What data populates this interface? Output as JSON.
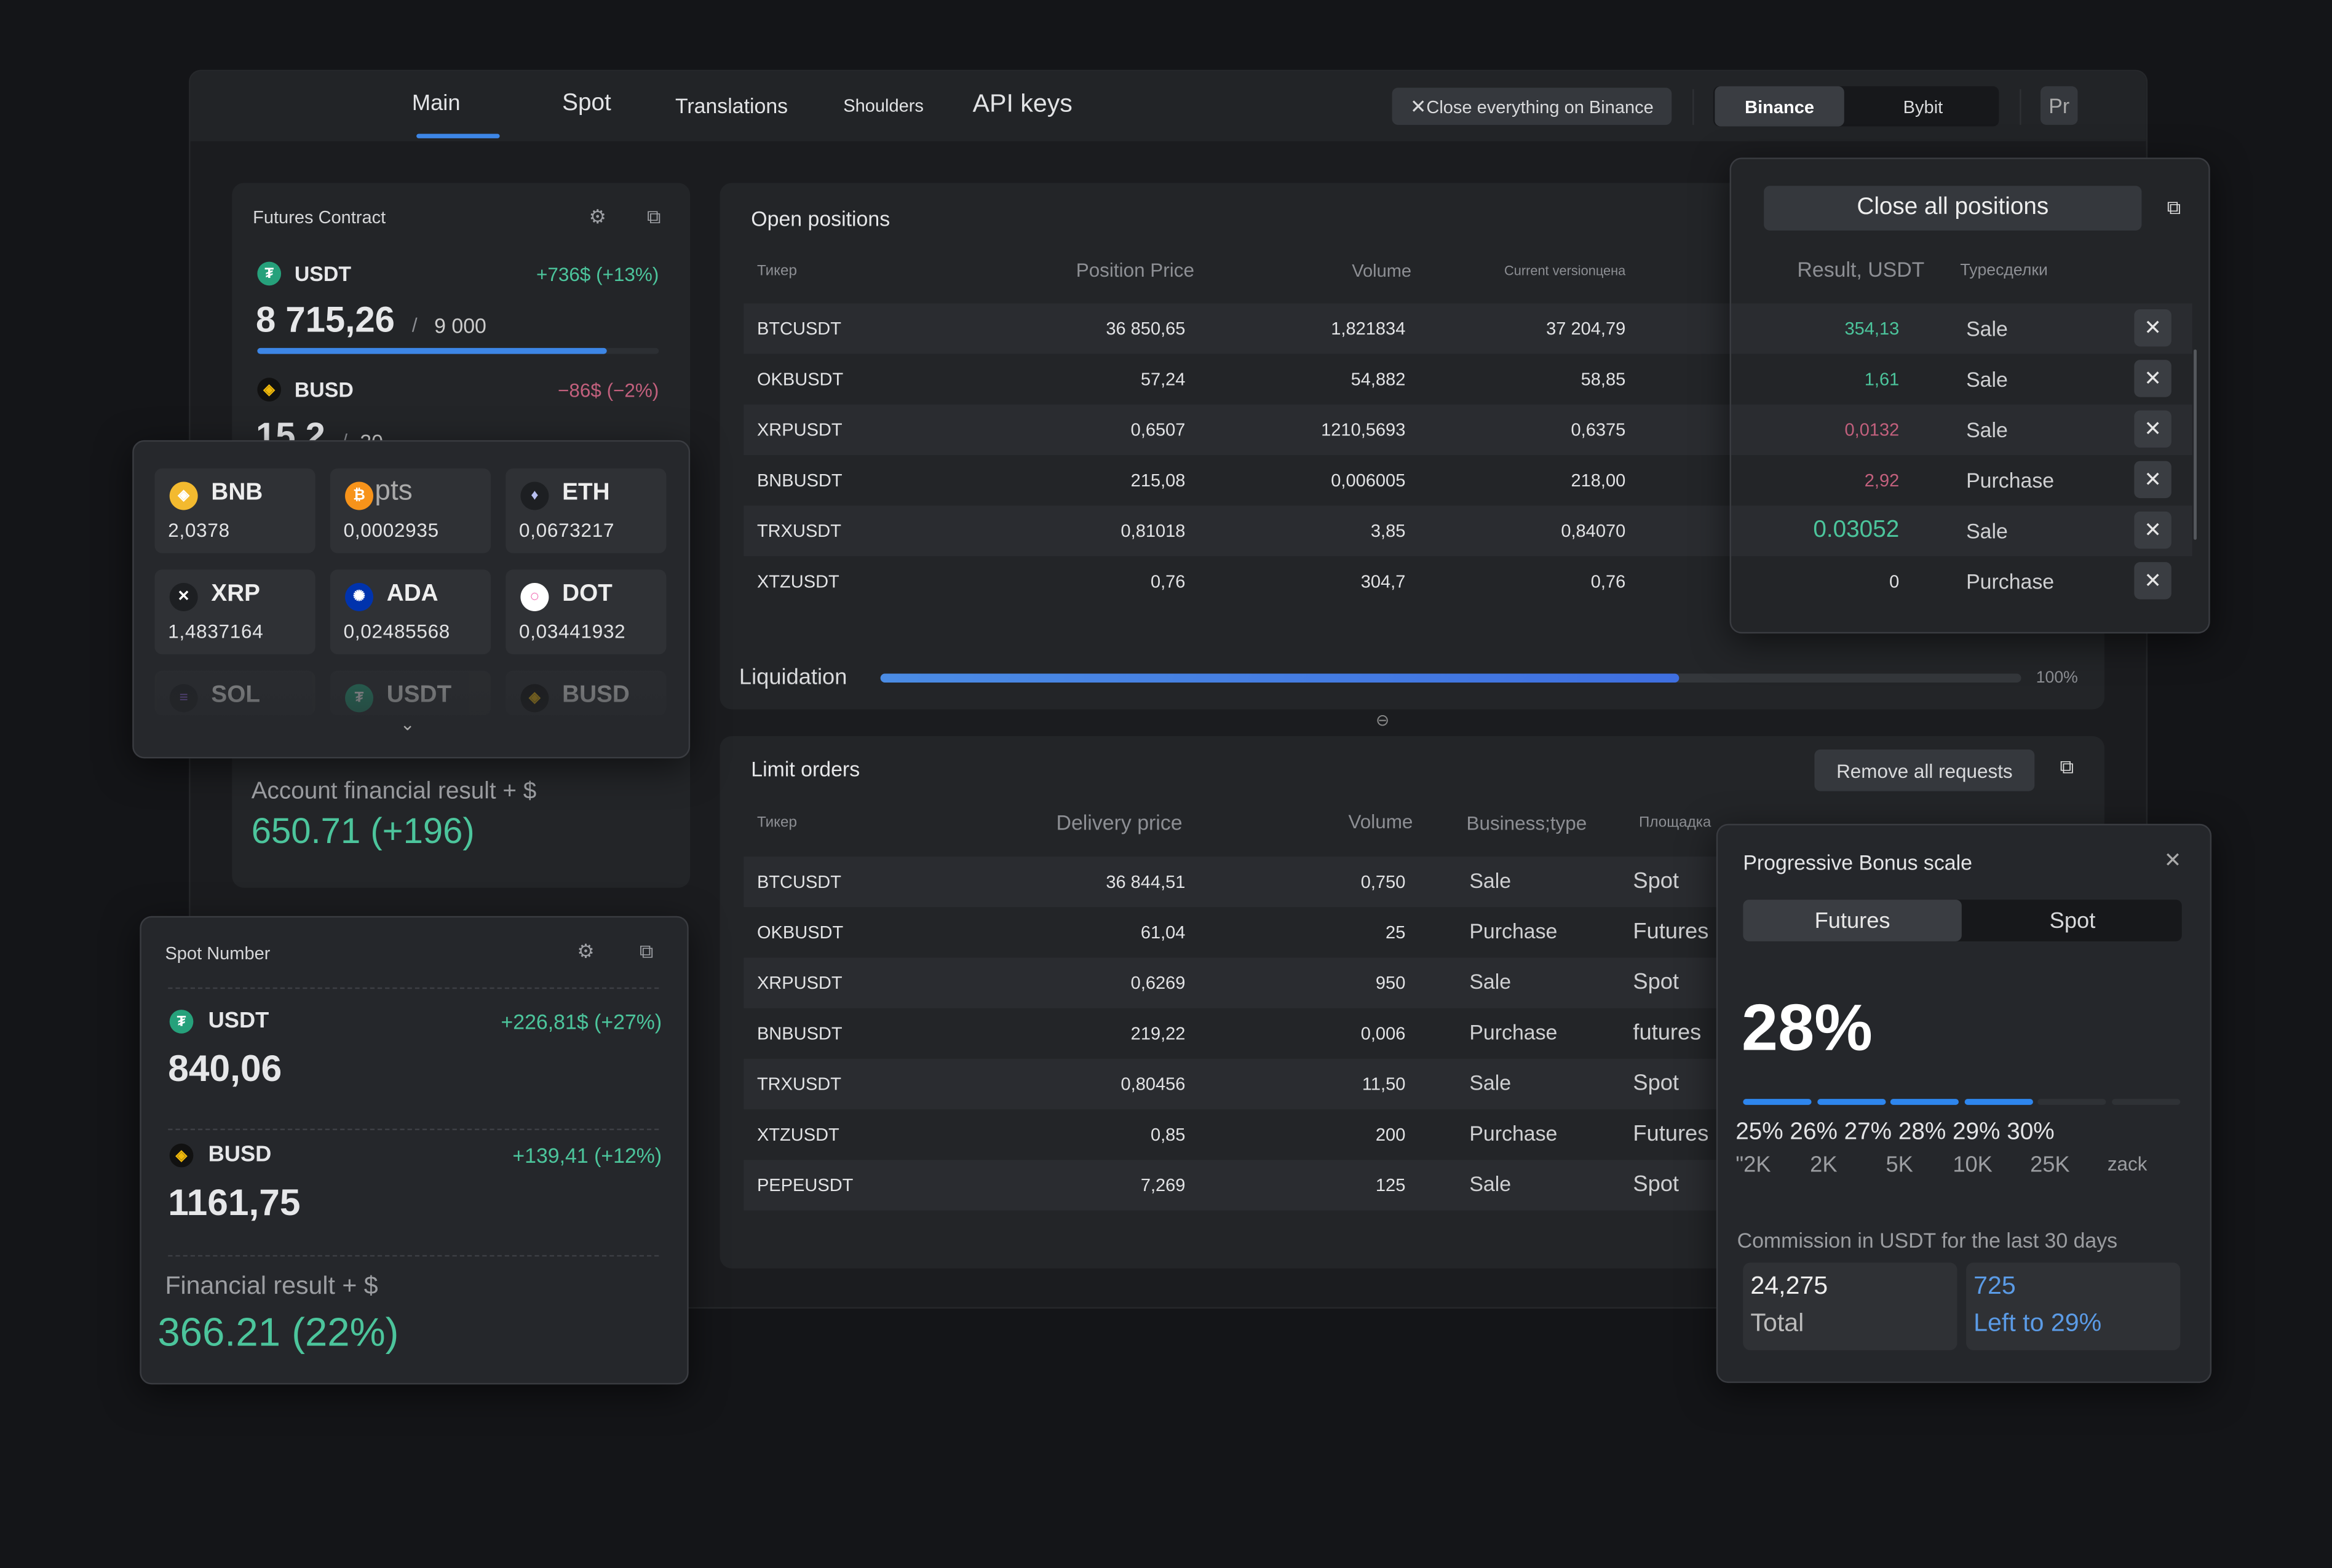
{
  "nav": {
    "tabs": [
      {
        "label": "Main",
        "active": true
      },
      {
        "label": "Spot"
      },
      {
        "label": "Translations"
      },
      {
        "label": "Shoulders"
      },
      {
        "label": "API keys"
      }
    ],
    "close_everything_label": "Close everything on Binance",
    "exchanges": [
      {
        "label": "Binance",
        "active": true
      },
      {
        "label": "Bybit"
      }
    ],
    "profile_label": "Pr"
  },
  "futures_card": {
    "title": "Futures Contract",
    "usdt": {
      "symbol": "USDT",
      "change": "+736$ (+13%)",
      "value": "8 715,26",
      "limit": "9 000",
      "progress": 0.87
    },
    "busd": {
      "symbol": "BUSD",
      "change": "−86$ (−2%)",
      "value": "15,2",
      "limit": "20"
    },
    "result_label": "Account financial result + $",
    "result_value": "650.71 (+196)"
  },
  "coins": [
    {
      "symbol": "BNB",
      "value": "2,0378",
      "icon": "bnb-icon",
      "color": "#f3ba2f"
    },
    {
      "symbol": "pts",
      "value": "0,0002935",
      "icon": "bitcoin-icon",
      "color": "#f7931a"
    },
    {
      "symbol": "ETH",
      "value": "0,0673217",
      "icon": "ethereum-icon",
      "color": "#1d1f22"
    },
    {
      "symbol": "XRP",
      "value": "1,4837164",
      "icon": "xrp-icon",
      "color": "#1d1f22"
    },
    {
      "symbol": "ADA",
      "value": "0,02485568",
      "icon": "cardano-icon",
      "color": "#0033ad"
    },
    {
      "symbol": "DOT",
      "value": "0,03441932",
      "icon": "polkadot-icon",
      "color": "#ffffff"
    },
    {
      "symbol": "SOL",
      "value": "",
      "icon": "solana-icon",
      "color": "#1d1f22"
    },
    {
      "symbol": "USDT",
      "value": "",
      "icon": "tether-icon",
      "color": "#26a17b"
    },
    {
      "symbol": "BUSD",
      "value": "",
      "icon": "busd-icon",
      "color": "#111111"
    }
  ],
  "spot_card": {
    "title": "Spot Number",
    "usdt": {
      "symbol": "USDT",
      "change": "+226,81$ (+27%)",
      "value": "840,06"
    },
    "busd": {
      "symbol": "BUSD",
      "change": "+139,41 (+12%)",
      "value": "1161,75"
    },
    "result_label": "Financial result + $",
    "result_value": "366.21 (22%)"
  },
  "open_positions": {
    "title": "Open positions",
    "columns": [
      "Тикер",
      "Position Price",
      "Volume",
      "Current versionцена"
    ],
    "rows": [
      [
        "BTCUSDT",
        "36 850,65",
        "1,821834",
        "37 204,79"
      ],
      [
        "OKBUSDT",
        "57,24",
        "54,882",
        "58,85"
      ],
      [
        "XRPUSDT",
        "0,6507",
        "1210,5693",
        "0,6375"
      ],
      [
        "BNBUSDT",
        "215,08",
        "0,006005",
        "218,00"
      ],
      [
        "TRXUSDT",
        "0,81018",
        "3,85",
        "0,84070"
      ],
      [
        "XTZUSDT",
        "0,76",
        "304,7",
        "0,76"
      ]
    ],
    "liquidation_label": "Liquidation",
    "liquidation_max": "100%",
    "liquidation_fill": 0.7
  },
  "close_panel": {
    "button_label": "Close all positions",
    "columns": [
      "Result, USDT",
      "Typeсделки"
    ],
    "rows": [
      {
        "result": "354,13",
        "type": "Sale",
        "tone": "green"
      },
      {
        "result": "1,61",
        "type": "Sale",
        "tone": "green"
      },
      {
        "result": "0,0132",
        "type": "Sale",
        "tone": "red"
      },
      {
        "result": "2,92",
        "type": "Purchase",
        "tone": "red"
      },
      {
        "result": "0.03052",
        "type": "Sale",
        "tone": "green"
      },
      {
        "result": "0",
        "type": "Purchase",
        "tone": "neutral"
      }
    ]
  },
  "limit_orders": {
    "title": "Limit orders",
    "remove_label": "Remove all requests",
    "columns": [
      "Тикер",
      "Delivery price",
      "Volume",
      "Business;type",
      "Площадка"
    ],
    "rows": [
      [
        "BTCUSDT",
        "36 844,51",
        "0,750",
        "Sale",
        "Spot"
      ],
      [
        "OKBUSDT",
        "61,04",
        "25",
        "Purchase",
        "Futures"
      ],
      [
        "XRPUSDT",
        "0,6269",
        "950",
        "Sale",
        "Spot"
      ],
      [
        "BNBUSDT",
        "219,22",
        "0,006",
        "Purchase",
        "futures"
      ],
      [
        "TRXUSDT",
        "0,80456",
        "11,50",
        "Sale",
        "Spot"
      ],
      [
        "XTZUSDT",
        "0,85",
        "200",
        "Purchase",
        "Futures"
      ],
      [
        "PEPEUSDT",
        "7,269",
        "125",
        "Sale",
        "Spot"
      ]
    ]
  },
  "bonus": {
    "title": "Progressive Bonus scale",
    "tabs": [
      {
        "label": "Futures",
        "active": true
      },
      {
        "label": "Spot"
      }
    ],
    "current": "28%",
    "levels_filled": 4,
    "levels_total": 6,
    "percents": "25% 26% 27% 28% 29% 30%",
    "thresholds": [
      "\"2K",
      "2K",
      "5K",
      "10K",
      "25K",
      "zack"
    ],
    "commission_label": "Commission in USDT for the last 30 days",
    "total_value": "24,275",
    "total_label": "Total",
    "left_value": "725",
    "left_label": "Left to 29%"
  },
  "colors": {
    "accent": "#3d86e6",
    "positive": "#4cc59c",
    "negative": "#c2607d",
    "link": "#5b9be6"
  }
}
